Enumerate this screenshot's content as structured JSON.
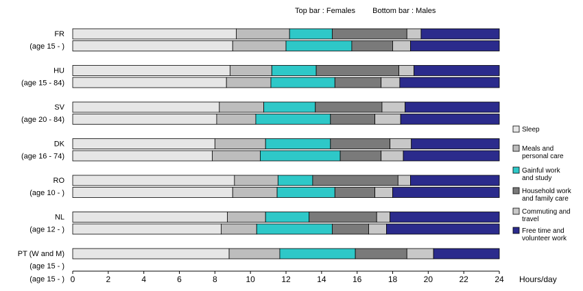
{
  "legend_note": {
    "top": "Top bar : Females",
    "bottom": "Bottom bar : Males"
  },
  "chart_data": {
    "type": "bar",
    "orientation": "horizontal-stacked",
    "xlabel": "Hours/day",
    "xlim": [
      0,
      24
    ],
    "xticks": [
      0,
      2,
      4,
      6,
      8,
      10,
      12,
      14,
      16,
      18,
      20,
      22,
      24
    ],
    "grid": false,
    "legend_position": "right",
    "segments": [
      {
        "name": "Sleep",
        "color": "#e6e6e6"
      },
      {
        "name": "Meals and personal care",
        "color": "#bdbdbd"
      },
      {
        "name": "Gainful work and study",
        "color": "#2ec8c8"
      },
      {
        "name": "Household work and family care",
        "color": "#7a7a7a"
      },
      {
        "name": "Commuting and travel",
        "color": "#c8c8c8"
      },
      {
        "name": "Free time and volunteer work",
        "color": "#2b2b8c"
      }
    ],
    "groups": [
      {
        "country": "FR",
        "age": "(age 15 - )",
        "females": [
          9.2,
          3.0,
          2.4,
          4.2,
          0.8,
          4.4
        ],
        "males": [
          9.0,
          3.0,
          3.7,
          2.3,
          1.0,
          5.0
        ]
      },
      {
        "country": "HU",
        "age": "(age 15 - 84)",
        "females": [
          8.85,
          2.35,
          2.5,
          4.65,
          0.85,
          4.8
        ],
        "males": [
          8.65,
          2.5,
          3.6,
          2.6,
          1.05,
          5.6
        ]
      },
      {
        "country": "SV",
        "age": "(age 20 - 84)",
        "females": [
          8.25,
          2.5,
          2.9,
          3.75,
          1.3,
          5.3
        ],
        "males": [
          8.1,
          2.2,
          4.2,
          2.5,
          1.45,
          5.55
        ]
      },
      {
        "country": "DK",
        "age": "(age 16 - 74)",
        "females": [
          8.0,
          2.85,
          3.65,
          3.35,
          1.2,
          4.95
        ],
        "males": [
          7.85,
          2.7,
          4.5,
          2.3,
          1.25,
          5.4
        ]
      },
      {
        "country": "RO",
        "age": "(age 10 - )",
        "females": [
          9.1,
          2.45,
          1.95,
          4.8,
          0.7,
          5.0
        ],
        "males": [
          9.0,
          2.5,
          3.25,
          2.25,
          1.0,
          6.0
        ]
      },
      {
        "country": "NL",
        "age": "(age 12 - )",
        "females": [
          8.7,
          2.15,
          2.45,
          3.8,
          0.75,
          6.15
        ],
        "males": [
          8.35,
          2.0,
          4.25,
          2.05,
          1.0,
          6.35
        ]
      },
      {
        "country": "PT (W and M)",
        "age": "(age 15 - )",
        "combined": [
          8.8,
          2.85,
          4.25,
          2.9,
          1.5,
          3.7
        ]
      }
    ],
    "bottom_age_label": "(age 15 - )"
  }
}
